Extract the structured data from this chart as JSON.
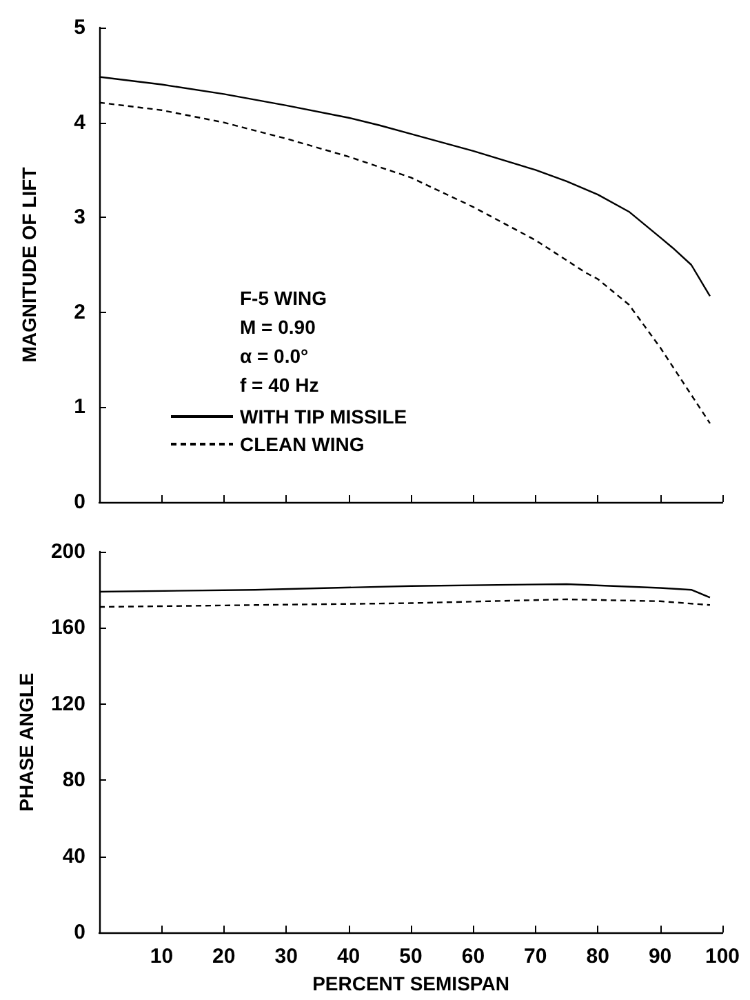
{
  "chart_data": [
    {
      "type": "line",
      "ylabel": "MAGNITUDE OF LIFT",
      "xlim": [
        0,
        100
      ],
      "xticks": [
        0,
        10,
        20,
        30,
        40,
        50,
        60,
        70,
        80,
        90,
        100
      ],
      "ylim": [
        0,
        5
      ],
      "yticks": [
        0,
        1,
        2,
        3,
        4,
        5
      ],
      "tick_labels": "y",
      "grid": false,
      "legend": "left",
      "marker": "none",
      "annotations": [
        "F-5 WING",
        "M = 0.90",
        "α = 0.0°",
        "f = 40 Hz"
      ],
      "series": [
        {
          "name": "WITH TIP MISSILE",
          "color": "#000000",
          "line_style": "solid",
          "x": [
            0,
            10,
            20,
            30,
            40,
            45,
            50,
            60,
            70,
            75,
            80,
            85,
            90,
            92,
            95,
            98
          ],
          "values": [
            4.48,
            4.4,
            4.3,
            4.18,
            4.05,
            3.97,
            3.88,
            3.7,
            3.5,
            3.38,
            3.24,
            3.06,
            2.79,
            2.68,
            2.5,
            2.17
          ]
        },
        {
          "name": "CLEAN WING",
          "color": "#000000",
          "line_style": "dashed",
          "x": [
            0,
            10,
            20,
            30,
            40,
            50,
            60,
            70,
            78,
            80,
            85,
            90,
            95,
            98
          ],
          "values": [
            4.21,
            4.13,
            4.0,
            3.83,
            3.64,
            3.42,
            3.11,
            2.76,
            2.42,
            2.35,
            2.08,
            1.63,
            1.13,
            0.83
          ]
        }
      ]
    },
    {
      "type": "line",
      "xlabel": "PERCENT SEMISPAN",
      "ylabel": "PHASE ANGLE",
      "xlim": [
        0,
        100
      ],
      "xticks": [
        {
          "value": 0,
          "label": null
        },
        10,
        20,
        30,
        40,
        50,
        60,
        70,
        80,
        90,
        100
      ],
      "ylim": [
        0,
        200
      ],
      "yticks": [
        0,
        40,
        80,
        120,
        160,
        200
      ],
      "grid": false,
      "marker": "none",
      "series": [
        {
          "color": "#000000",
          "line_style": "solid",
          "x": [
            0,
            25,
            50,
            75,
            90,
            95,
            98
          ],
          "values": [
            179,
            180,
            182,
            183,
            181,
            180,
            176
          ]
        },
        {
          "color": "#000000",
          "line_style": "dashed",
          "x": [
            0,
            25,
            50,
            75,
            90,
            98
          ],
          "values": [
            171,
            172,
            173,
            175,
            174,
            172
          ]
        }
      ]
    }
  ]
}
